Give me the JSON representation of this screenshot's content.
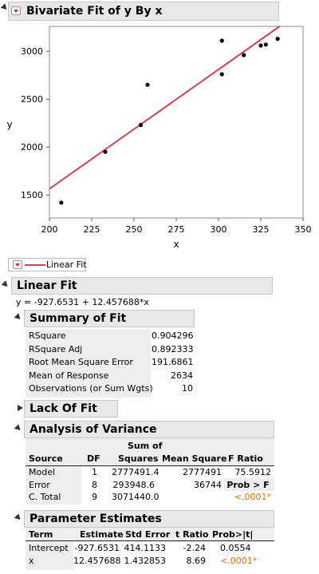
{
  "report": {
    "title": "Bivariate Fit of y By x",
    "linear_fit_legend": "Linear Fit",
    "linear_fit_title": "Linear Fit",
    "equation": "y = -927.6531 + 12.457688*x"
  },
  "chart_data": {
    "type": "scatter",
    "xlabel": "x",
    "ylabel": "y",
    "xlim": [
      200,
      350
    ],
    "ylim": [
      1260,
      3260
    ],
    "xticks": [
      "200",
      "225",
      "250",
      "275",
      "300",
      "325",
      "350"
    ],
    "yticks": [
      "1500",
      "2000",
      "2500",
      "3000"
    ],
    "points": [
      {
        "x": 207,
        "y": 1420
      },
      {
        "x": 233,
        "y": 1950
      },
      {
        "x": 254,
        "y": 2230
      },
      {
        "x": 258,
        "y": 2650
      },
      {
        "x": 302,
        "y": 3110
      },
      {
        "x": 302,
        "y": 2760
      },
      {
        "x": 315,
        "y": 2960
      },
      {
        "x": 325,
        "y": 3060
      },
      {
        "x": 328,
        "y": 3070
      },
      {
        "x": 335,
        "y": 3130
      }
    ],
    "fit": {
      "intercept": -927.6531,
      "slope": 12.457688,
      "color": "#cc4455"
    }
  },
  "summary_of_fit": {
    "title": "Summary of Fit",
    "rows": [
      {
        "label": "RSquare",
        "value": "0.904296"
      },
      {
        "label": "RSquare Adj",
        "value": "0.892333"
      },
      {
        "label": "Root Mean Square Error",
        "value": "191.6861"
      },
      {
        "label": "Mean of Response",
        "value": "2634"
      },
      {
        "label": "Observations (or Sum Wgts)",
        "value": "10"
      }
    ]
  },
  "lack_of_fit": {
    "title": "Lack Of Fit"
  },
  "anova": {
    "title": "Analysis of Variance",
    "headers": {
      "source": "Source",
      "df": "DF",
      "ss_top": "Sum of",
      "ss_bottom": "Squares",
      "ms": "Mean Square",
      "f": "F Ratio"
    },
    "rows": [
      {
        "source": "Model",
        "df": "1",
        "ss": "2777491.4",
        "ms": "2777491",
        "f": "75.5912"
      },
      {
        "source": "Error",
        "df": "8",
        "ss": "293948.6",
        "ms": "36744",
        "f": "Prob > F"
      },
      {
        "source": "C. Total",
        "df": "9",
        "ss": "3071440.0",
        "ms": "",
        "f": "<.0001*"
      }
    ]
  },
  "parameter_estimates": {
    "title": "Parameter Estimates",
    "headers": {
      "term": "Term",
      "estimate": "Estimate",
      "std_error": "Std Error",
      "t_ratio": "t Ratio",
      "prob": "Prob>|t|"
    },
    "rows": [
      {
        "term": "Intercept",
        "estimate": "-927.6531",
        "std_error": "414.1133",
        "t_ratio": "-2.24",
        "prob": "0.0554"
      },
      {
        "term": "x",
        "estimate": "12.457688",
        "std_error": "1.432853",
        "t_ratio": "8.69",
        "prob": "<.0001*"
      }
    ]
  }
}
